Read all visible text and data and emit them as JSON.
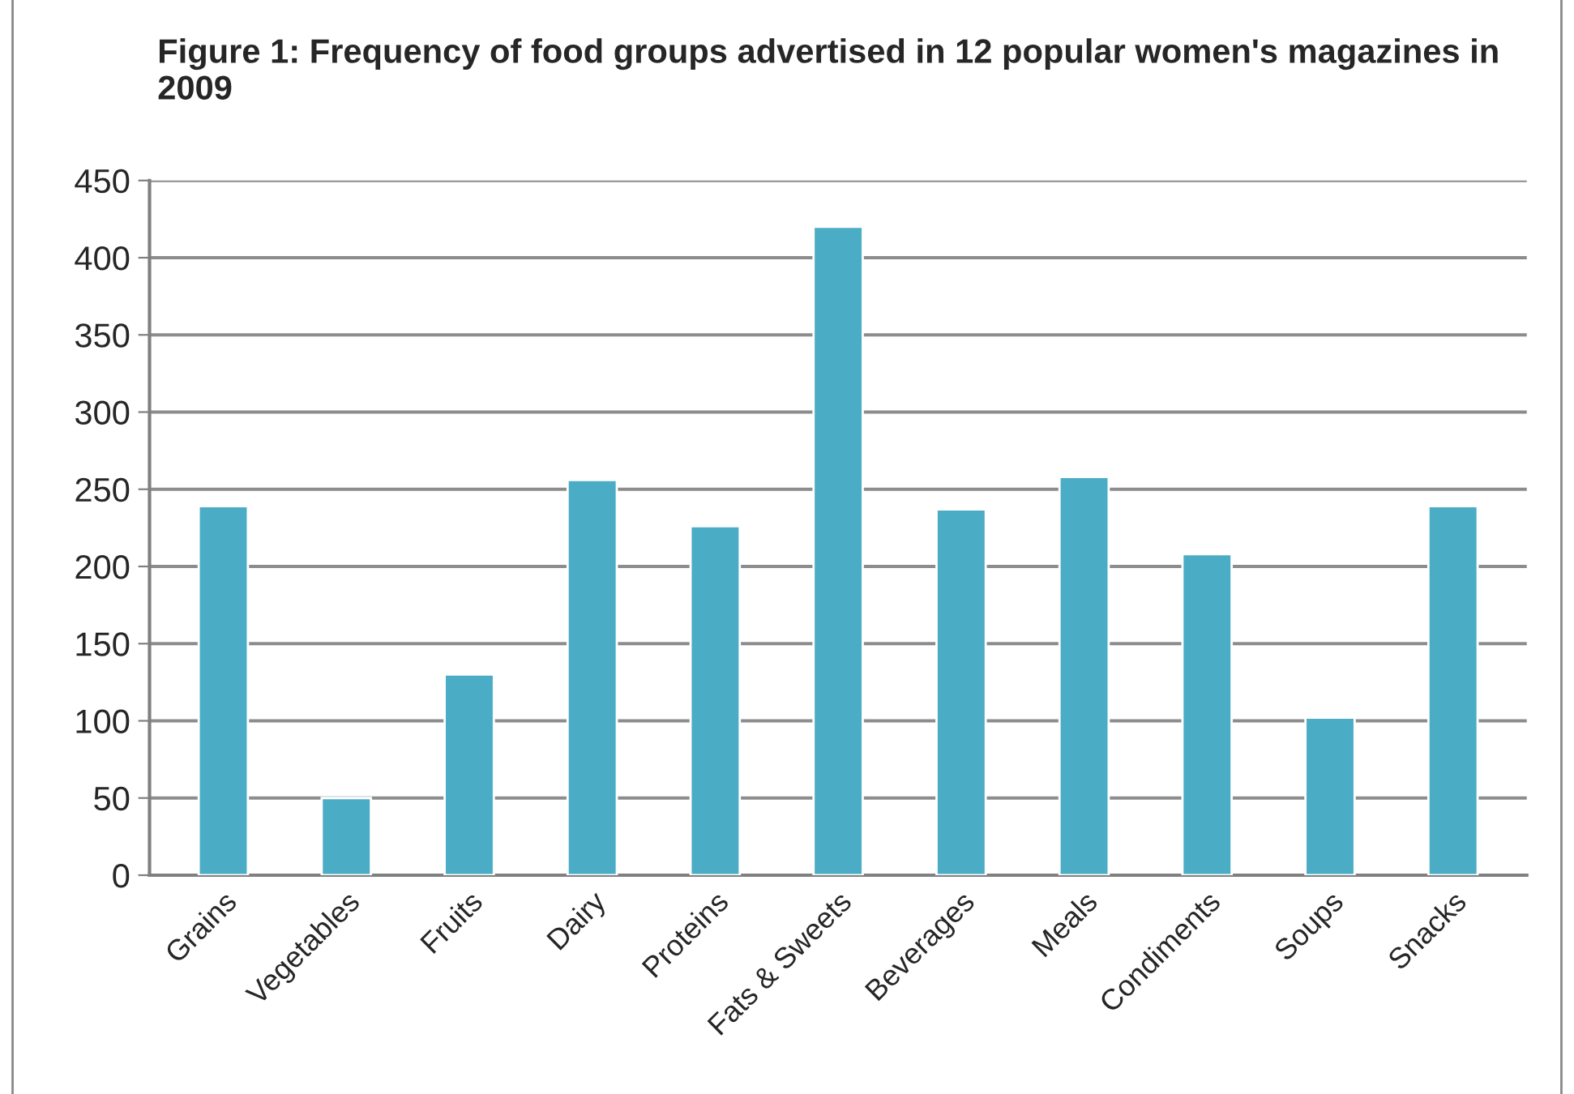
{
  "chart_data": {
    "type": "bar",
    "title": "Figure 1: Frequency of food groups advertised in 12 popular women's magazines in 2009",
    "categories": [
      "Grains",
      "Vegetables",
      "Fruits",
      "Dairy",
      "Proteins",
      "Fats & Sweets",
      "Beverages",
      "Meals",
      "Condiments",
      "Soups",
      "Snacks"
    ],
    "values": [
      239,
      50,
      130,
      256,
      226,
      420,
      237,
      258,
      208,
      102,
      239
    ],
    "color": "#4bacc6",
    "ylim": [
      0,
      450
    ],
    "yticks": [
      0,
      50,
      100,
      150,
      200,
      250,
      300,
      350,
      400,
      450
    ],
    "grid": "y",
    "legend": false
  }
}
